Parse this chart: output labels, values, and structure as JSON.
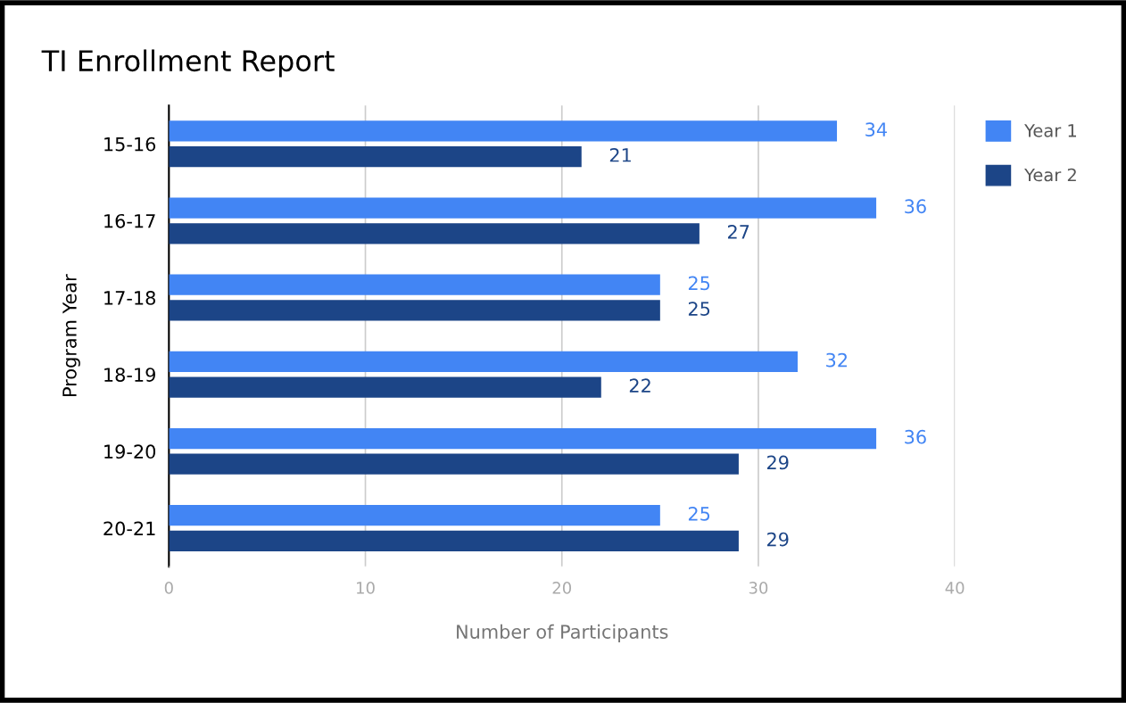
{
  "chart_data": {
    "type": "bar",
    "orientation": "horizontal",
    "title": "TI Enrollment Report",
    "xlabel": "Number of Participants",
    "ylabel": "Program Year",
    "categories": [
      "15-16",
      "16-17",
      "17-18",
      "18-19",
      "19-20",
      "20-21"
    ],
    "series": [
      {
        "name": "Year 1",
        "color": "#4285f4",
        "values": [
          34,
          36,
          25,
          32,
          36,
          25
        ]
      },
      {
        "name": "Year 2",
        "color": "#1c4587",
        "values": [
          21,
          27,
          25,
          22,
          29,
          29
        ]
      }
    ],
    "xlim": [
      0,
      40
    ],
    "xticks": [
      0,
      10,
      20,
      30,
      40
    ],
    "grid": "x",
    "legend": "top right",
    "data_labels": true
  }
}
